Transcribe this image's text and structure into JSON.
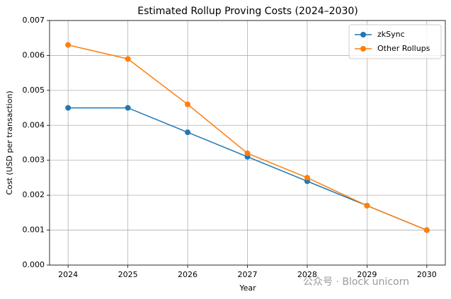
{
  "chart_data": {
    "type": "line",
    "title": "Estimated Rollup Proving Costs (2024–2030)",
    "x_label": "Year",
    "y_label": "Cost (USD per transaction)",
    "x": [
      2024,
      2025,
      2026,
      2027,
      2028,
      2029,
      2030
    ],
    "series": [
      {
        "name": "zkSync",
        "color": "#1f77b4",
        "values": [
          0.0045,
          0.0045,
          0.0038,
          0.0031,
          0.0024,
          0.0017,
          0.001
        ]
      },
      {
        "name": "Other Rollups",
        "color": "#ff7f0e",
        "values": [
          0.0063,
          0.0059,
          0.0046,
          0.0032,
          0.0025,
          0.0017,
          0.001
        ]
      }
    ],
    "xlim": [
      2023.69,
      2030.31
    ],
    "xticks": [
      2024,
      2025,
      2026,
      2027,
      2028,
      2029,
      2030
    ],
    "ylim": [
      0,
      0.007
    ],
    "yticks": [
      {
        "value": 0,
        "label": "0.000"
      },
      {
        "value": 0.001,
        "label": "0.001"
      },
      {
        "value": 0.002,
        "label": "0.002"
      },
      {
        "value": 0.003,
        "label": "0.003"
      },
      {
        "value": 0.004,
        "label": "0.004"
      },
      {
        "value": 0.005,
        "label": "0.005"
      },
      {
        "value": 0.006,
        "label": "0.006"
      },
      {
        "value": 0.007,
        "label": "0.007"
      }
    ],
    "grid": true,
    "legend": "upper right",
    "watermark": "公众号 · Block unicorn"
  }
}
